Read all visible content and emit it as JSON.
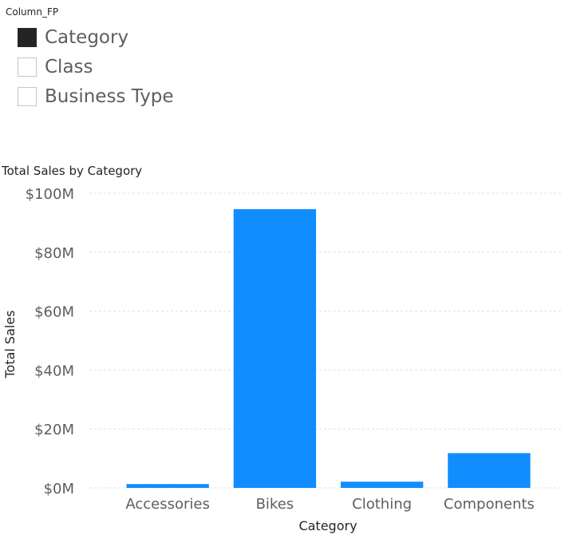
{
  "slicer": {
    "header": "Column_FP",
    "items": [
      {
        "label": "Category",
        "checked": true
      },
      {
        "label": "Class",
        "checked": false
      },
      {
        "label": "Business Type",
        "checked": false
      }
    ]
  },
  "colors": {
    "bar": "#118dff",
    "gridline": "#e1dfdd",
    "axis_text": "#605e5c",
    "title_text": "#252423",
    "checked_box": "#252423",
    "box_border": "#c8c6c4"
  },
  "chart_data": {
    "type": "bar",
    "title": "Total Sales by Category",
    "xlabel": "Category",
    "ylabel": "Total Sales",
    "categories": [
      "Accessories",
      "Bikes",
      "Clothing",
      "Components"
    ],
    "series": [
      {
        "values": [
          1.3,
          94.6,
          2.1,
          11.8
        ]
      }
    ],
    "unit_note": "values in $ millions",
    "ylim": [
      0,
      100
    ],
    "yticks": [
      0,
      20,
      40,
      60,
      80,
      100
    ],
    "ytick_labels": [
      "$0M",
      "$20M",
      "$40M",
      "$60M",
      "$80M",
      "$100M"
    ],
    "grid": true,
    "grid_style": "dashed"
  }
}
